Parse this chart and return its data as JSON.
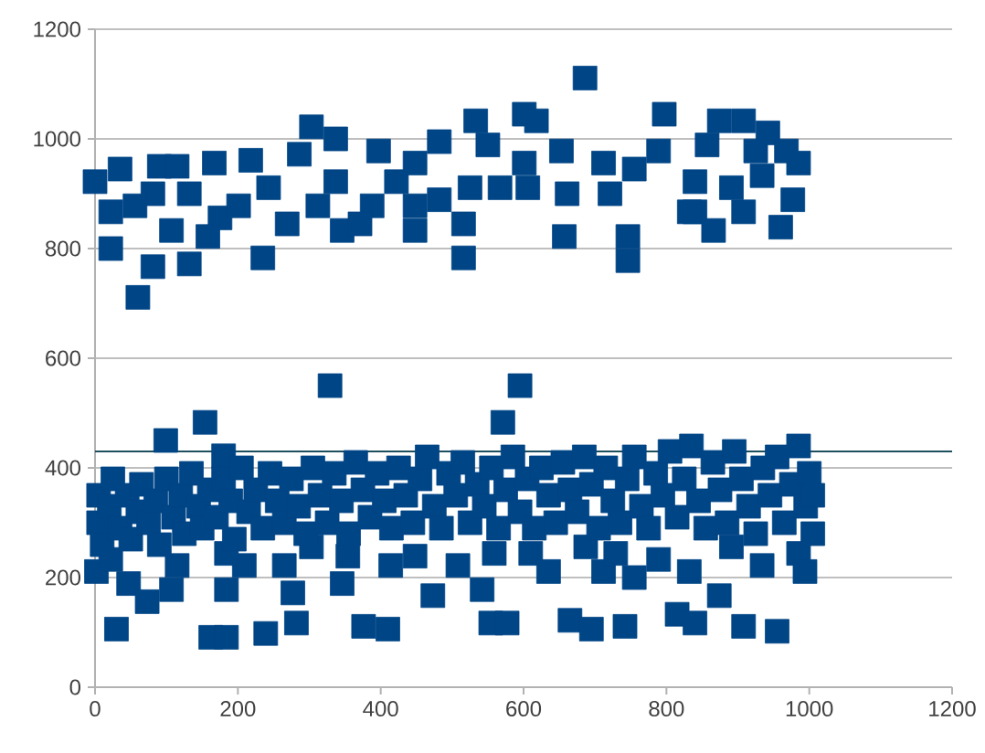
{
  "chart_data": {
    "type": "scatter",
    "color": "#004586",
    "marker": "square",
    "grid": "y",
    "xlim": [
      0,
      1200
    ],
    "ylim": [
      0,
      1200
    ],
    "xticks": [
      0,
      200,
      400,
      600,
      800,
      1000,
      1200
    ],
    "yticks": [
      0,
      200,
      400,
      600,
      800,
      1000,
      1200
    ],
    "ref_lines": [
      {
        "axis": "y",
        "value": 430,
        "color": "#1d4f5e"
      }
    ],
    "x": [
      686,
      60,
      235,
      516,
      657,
      746,
      746,
      960,
      0,
      22,
      35,
      90,
      115,
      167,
      218,
      81,
      132,
      81,
      132,
      107,
      175,
      243,
      303,
      337,
      286,
      312,
      346,
      337,
      397,
      388,
      422,
      448,
      448,
      482,
      482,
      516,
      533,
      550,
      525,
      567,
      601,
      618,
      601,
      606,
      653,
      661,
      712,
      721,
      755,
      797,
      789,
      840,
      840,
      857,
      874,
      908,
      891,
      908,
      866,
      942,
      934,
      968,
      977,
      985,
      925,
      448,
      371,
      269,
      201,
      158,
      22,
      56,
      832,
      329,
      595,
      99,
      154,
      571,
      180,
      30,
      162,
      184,
      239,
      282,
      376,
      410,
      554,
      577,
      665,
      695,
      742,
      815,
      840,
      908,
      955,
      2,
      22,
      47,
      73,
      107,
      115,
      184,
      209,
      184,
      265,
      277,
      303,
      346,
      354,
      414,
      448,
      473,
      508,
      542,
      559,
      610,
      635,
      687,
      712,
      729,
      755,
      789,
      832,
      874,
      891,
      934,
      985,
      994,
      5,
      5,
      10,
      20,
      25,
      35,
      45,
      50,
      60,
      65,
      75,
      85,
      90,
      100,
      110,
      120,
      125,
      135,
      145,
      150,
      160,
      170,
      180,
      190,
      195,
      205,
      215,
      225,
      235,
      245,
      255,
      265,
      275,
      285,
      295,
      305,
      315,
      325,
      335,
      345,
      355,
      365,
      375,
      385,
      395,
      405,
      415,
      425,
      435,
      445,
      455,
      465,
      475,
      485,
      495,
      505,
      515,
      525,
      535,
      545,
      555,
      565,
      575,
      585,
      595,
      605,
      615,
      625,
      635,
      645,
      655,
      665,
      675,
      685,
      695,
      705,
      715,
      725,
      735,
      745,
      755,
      765,
      775,
      785,
      795,
      805,
      815,
      825,
      835,
      845,
      855,
      865,
      875,
      885,
      895,
      905,
      915,
      925,
      935,
      945,
      955,
      965,
      975,
      985,
      995,
      1000,
      1005,
      1005
    ],
    "values": [
      1111,
      711,
      783,
      783,
      822,
      778,
      822,
      839,
      922,
      800,
      945,
      950,
      950,
      956,
      961,
      900,
      900,
      767,
      772,
      833,
      856,
      911,
      1022,
      1000,
      972,
      878,
      833,
      922,
      978,
      878,
      922,
      956,
      833,
      889,
      995,
      845,
      1033,
      989,
      911,
      911,
      1045,
      1033,
      956,
      911,
      978,
      900,
      956,
      900,
      945,
      1045,
      978,
      922,
      867,
      989,
      1033,
      1033,
      911,
      867,
      833,
      1011,
      933,
      978,
      889,
      956,
      978,
      878,
      845,
      845,
      878,
      822,
      867,
      878,
      867,
      550,
      550,
      450,
      483,
      483,
      422,
      106,
      91,
      91,
      98,
      117,
      111,
      106,
      117,
      117,
      122,
      106,
      111,
      133,
      117,
      111,
      102,
      211,
      233,
      189,
      156,
      178,
      222,
      178,
      222,
      244,
      222,
      172,
      256,
      189,
      239,
      222,
      239,
      167,
      222,
      178,
      244,
      244,
      211,
      256,
      211,
      244,
      200,
      233,
      211,
      167,
      256,
      222,
      244,
      211,
      300,
      350,
      260,
      330,
      380,
      290,
      350,
      270,
      320,
      370,
      300,
      340,
      260,
      380,
      310,
      350,
      280,
      390,
      330,
      290,
      360,
      310,
      380,
      340,
      270,
      400,
      320,
      360,
      290,
      390,
      340,
      300,
      380,
      330,
      280,
      400,
      350,
      300,
      390,
      340,
      280,
      410,
      360,
      310,
      390,
      340,
      290,
      400,
      350,
      300,
      380,
      420,
      330,
      290,
      390,
      350,
      410,
      300,
      370,
      330,
      400,
      290,
      360,
      420,
      320,
      380,
      290,
      400,
      350,
      300,
      410,
      360,
      320,
      420,
      370,
      290,
      400,
      340,
      300,
      380,
      420,
      330,
      290,
      390,
      350,
      430,
      310,
      380,
      440,
      340,
      290,
      410,
      360,
      300,
      430,
      380,
      330,
      280,
      400,
      350,
      420,
      300,
      370,
      440,
      330,
      390,
      280,
      350
    ]
  }
}
